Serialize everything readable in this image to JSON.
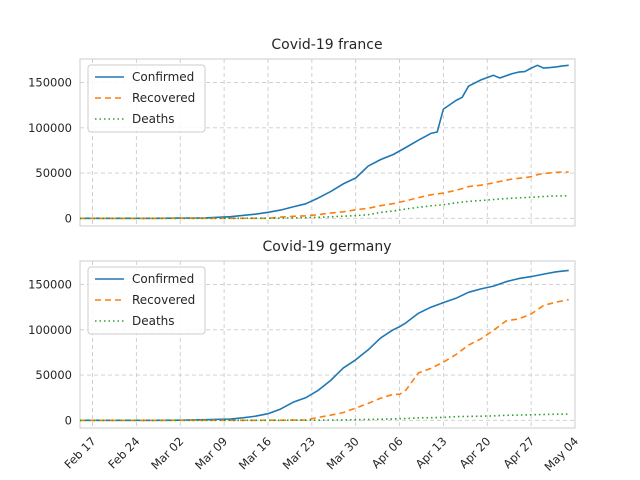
{
  "chart_data": [
    {
      "type": "line",
      "title": "Covid-19 france",
      "xlabel": "",
      "ylabel": "",
      "ylim": [
        -8500,
        176000
      ],
      "yticks": [
        0,
        50000,
        100000,
        150000
      ],
      "ytick_labels": [
        "0",
        "50000",
        "100000",
        "150000"
      ],
      "grid": true,
      "legend_position": "top-left",
      "x": [
        "02-15",
        "02-19",
        "02-23",
        "02-27",
        "03-02",
        "03-06",
        "03-10",
        "03-14",
        "03-16",
        "03-18",
        "03-20",
        "03-22",
        "03-24",
        "03-26",
        "03-28",
        "03-30",
        "04-01",
        "04-03",
        "04-05",
        "04-07",
        "04-09",
        "04-11",
        "04-12",
        "04-13",
        "04-15",
        "04-16",
        "04-17",
        "04-19",
        "04-21",
        "04-22",
        "04-24",
        "04-25",
        "04-26",
        "04-27",
        "04-28",
        "04-29",
        "04-30",
        "05-01",
        "05-02",
        "05-03"
      ],
      "series": [
        {
          "name": "Confirmed",
          "color": "#1f77b4",
          "dash": "solid",
          "values": [
            12,
            12,
            12,
            57,
            191,
            423,
            1784,
            4500,
            6600,
            9100,
            12600,
            16000,
            22300,
            29500,
            38000,
            44500,
            57700,
            65000,
            70500,
            78200,
            86300,
            93800,
            95400,
            120600,
            130200,
            133700,
            146000,
            152900,
            158000,
            155000,
            159900,
            161500,
            162100,
            165800,
            169000,
            165900,
            166500,
            167300,
            168400,
            169000
          ]
        },
        {
          "name": "Recovered",
          "color": "#ff7f0e",
          "dash": "6 4",
          "values": [
            4,
            4,
            4,
            11,
            12,
            12,
            12,
            12,
            28,
            1300,
            2200,
            2800,
            4000,
            5700,
            7200,
            9400,
            11000,
            14000,
            16200,
            19300,
            22900,
            26000,
            27000,
            27800,
            30900,
            32800,
            35000,
            36600,
            39100,
            40700,
            43400,
            44200,
            45000,
            46000,
            48200,
            49500,
            50200,
            50800,
            51000,
            51100
          ]
        },
        {
          "name": "Deaths",
          "color": "#2ca02c",
          "dash": "1.5 3",
          "values": [
            1,
            1,
            1,
            2,
            3,
            9,
            33,
            79,
            148,
            244,
            450,
            674,
            1100,
            1700,
            2300,
            3000,
            4030,
            6500,
            8078,
            10328,
            12210,
            13832,
            14393,
            14967,
            17167,
            17920,
            18681,
            19718,
            20796,
            21340,
            22245,
            22614,
            22856,
            23293,
            23660,
            24087,
            24376,
            24594,
            24760,
            24895
          ]
        }
      ]
    },
    {
      "type": "line",
      "title": "Covid-19 germany",
      "xlabel": "",
      "ylabel": "",
      "ylim": [
        -8500,
        176000
      ],
      "yticks": [
        0,
        50000,
        100000,
        150000
      ],
      "ytick_labels": [
        "0",
        "50000",
        "100000",
        "150000"
      ],
      "grid": true,
      "legend_position": "top-left",
      "x": [
        "02-15",
        "02-19",
        "02-23",
        "02-27",
        "03-02",
        "03-06",
        "03-10",
        "03-12",
        "03-14",
        "03-16",
        "03-18",
        "03-20",
        "03-22",
        "03-24",
        "03-26",
        "03-28",
        "03-30",
        "04-01",
        "04-03",
        "04-05",
        "04-06",
        "04-07",
        "04-09",
        "04-11",
        "04-13",
        "04-15",
        "04-17",
        "04-19",
        "04-21",
        "04-23",
        "04-25",
        "04-27",
        "04-29",
        "05-01",
        "05-03"
      ],
      "series": [
        {
          "name": "Confirmed",
          "color": "#1f77b4",
          "dash": "solid",
          "values": [
            16,
            16,
            16,
            46,
            159,
            670,
            1457,
            2745,
            4585,
            7272,
            12327,
            19848,
            24873,
            32986,
            43938,
            57695,
            66885,
            77872,
            91159,
            100123,
            103374,
            107663,
            118181,
            124908,
            130072,
            134753,
            141397,
            145184,
            148291,
            153129,
            156513,
            158758,
            161539,
            164077,
            165664
          ]
        },
        {
          "name": "Recovered",
          "color": "#ff7f0e",
          "dash": "6 4",
          "values": [
            14,
            14,
            16,
            16,
            16,
            18,
            25,
            25,
            46,
            67,
            105,
            180,
            266,
            3243,
            5673,
            8481,
            13500,
            18700,
            24575,
            28700,
            28700,
            33300,
            52407,
            57400,
            64300,
            72600,
            83114,
            90000,
            99400,
            109800,
            112000,
            117400,
            126900,
            130600,
            133400
          ]
        },
        {
          "name": "Deaths",
          "color": "#2ca02c",
          "dash": "1.5 3",
          "values": [
            0,
            0,
            0,
            0,
            0,
            0,
            2,
            6,
            9,
            17,
            28,
            67,
            94,
            157,
            267,
            433,
            645,
            920,
            1275,
            1584,
            1810,
            2016,
            2607,
            2871,
            3194,
            4052,
            4352,
            4586,
            4862,
            5575,
            5760,
            6126,
            6467,
            6736,
            6866
          ]
        }
      ]
    }
  ],
  "x_axis": {
    "start": "02-15",
    "end": "05-04",
    "tick_dates": [
      "02-17",
      "02-24",
      "03-02",
      "03-09",
      "03-16",
      "03-23",
      "03-30",
      "04-06",
      "04-13",
      "04-20",
      "04-27",
      "05-04"
    ],
    "tick_labels": [
      "Feb 17",
      "Feb 24",
      "Mar 02",
      "Mar 09",
      "Mar 16",
      "Mar 23",
      "Mar 30",
      "Apr 06",
      "Apr 13",
      "Apr 20",
      "Apr 27",
      "May 04"
    ]
  }
}
